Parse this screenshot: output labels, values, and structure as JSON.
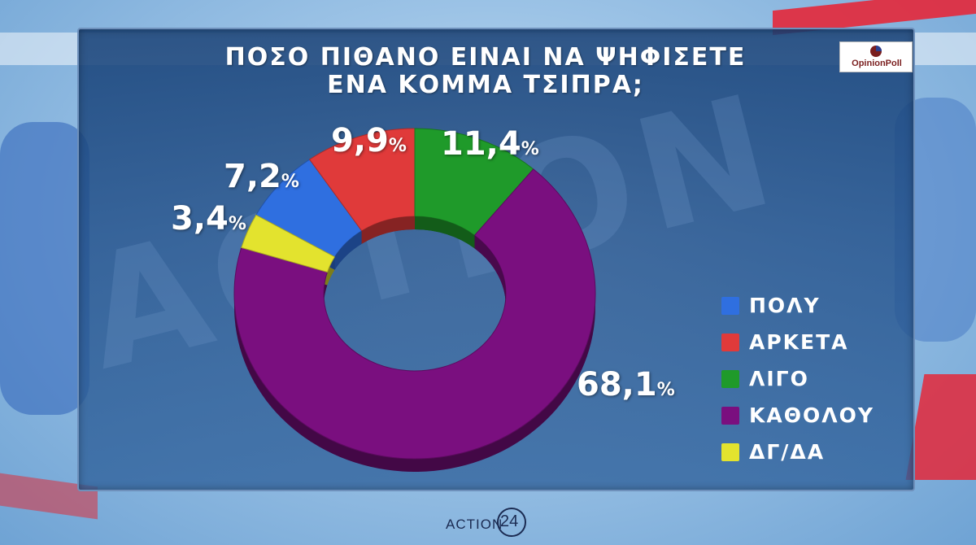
{
  "title_lines": [
    "ΠΟΣΟ ΠΙΘΑΝΟ ΕΙΝΑΙ ΝΑ ΨΗΦΙΣΕΤΕ",
    "ΕΝΑ ΚΟΜΜΑ ΤΣΙΠΡΑ;"
  ],
  "watermark_text": "ACTION",
  "logo": {
    "text": "OpinionPoll"
  },
  "brand": {
    "word": "ACTION",
    "number": "24"
  },
  "chart_data": {
    "type": "pie",
    "title": "ΠΟΣΟ ΠΙΘΑΝΟ ΕΙΝΑΙ ΝΑ ΨΗΦΙΣΕΤΕ ΕΝΑ ΚΟΜΜΑ ΤΣΙΠΡΑ;",
    "style": "donut",
    "legend_placement": "right",
    "unit": "%",
    "slices": [
      {
        "name": "ΠΟΛΥ",
        "value": 7.2,
        "label": "7,2",
        "color": "#2f6fe0"
      },
      {
        "name": "ΑΡΚΕΤΑ",
        "value": 9.9,
        "label": "9,9",
        "color": "#e03a3a"
      },
      {
        "name": "ΛΙΓΟ",
        "value": 11.4,
        "label": "11,4",
        "color": "#1f9a2a"
      },
      {
        "name": "ΚΑΘΟΛΟΥ",
        "value": 68.1,
        "label": "68,1",
        "color": "#7a0f7f"
      },
      {
        "name": "ΔΓ/ΔΑ",
        "value": 3.4,
        "label": "3,4",
        "color": "#e3e32e"
      }
    ]
  }
}
